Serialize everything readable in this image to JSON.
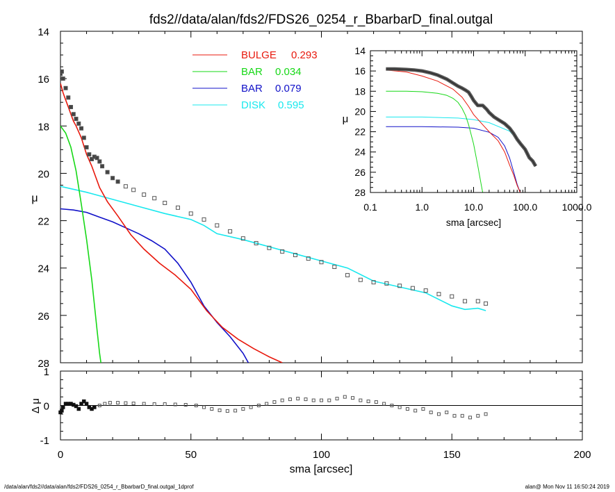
{
  "title": "fds2//data/alan/fds2/FDS26_0254_r_BbarbarD_final.outgal",
  "footer_left": "/data/alan/fds2//data/alan/fds2/FDS26_0254_r_BbarbarD_final.outgal_1dprof",
  "footer_right": "alan@  Mon Nov 11 16:50:24 2019",
  "colors": {
    "bulge": "#e8180c",
    "bar1": "#16d816",
    "bar2": "#1010c8",
    "disk": "#18e8ee",
    "data": "#555555"
  },
  "chart_data": [
    {
      "id": "main",
      "type": "line",
      "xlabel": "",
      "ylabel": "μ",
      "xlim": [
        0,
        200
      ],
      "ylim": [
        28,
        14
      ],
      "yticks": [
        14,
        16,
        18,
        20,
        22,
        24,
        26,
        28
      ],
      "legend": {
        "placement": "top-center"
      },
      "series": [
        {
          "key": "bulge",
          "name": "BULGE",
          "value": "0.293",
          "x": [
            0,
            1,
            2,
            3,
            4,
            5,
            6,
            8,
            10,
            12,
            15,
            18,
            22,
            27,
            32,
            38,
            44,
            50,
            56,
            62,
            68,
            74,
            80,
            85
          ],
          "y": [
            16.2,
            16.6,
            16.9,
            17.2,
            17.5,
            17.8,
            18.0,
            18.5,
            19.2,
            19.7,
            20.6,
            21.2,
            21.8,
            22.6,
            23.2,
            23.8,
            24.3,
            24.9,
            25.8,
            26.5,
            27.0,
            27.4,
            27.75,
            28.0
          ]
        },
        {
          "key": "bar1",
          "name": "BAR",
          "value": "0.034",
          "x": [
            0,
            2,
            4,
            6,
            8,
            10,
            12,
            14,
            15,
            15.5
          ],
          "y": [
            18.0,
            18.3,
            18.9,
            19.9,
            21.3,
            22.8,
            24.5,
            26.6,
            27.6,
            28.0
          ]
        },
        {
          "key": "bar2",
          "name": "BAR",
          "value": "0.079",
          "x": [
            0,
            5,
            10,
            15,
            20,
            25,
            30,
            35,
            40,
            45,
            50,
            55,
            60,
            65,
            70,
            72
          ],
          "y": [
            21.5,
            21.55,
            21.65,
            21.85,
            22.05,
            22.3,
            22.55,
            22.85,
            23.2,
            23.8,
            24.6,
            25.6,
            26.3,
            26.9,
            27.6,
            28.0
          ]
        },
        {
          "key": "disk",
          "name": "DISK",
          "value": "0.595",
          "x": [
            0,
            10,
            20,
            30,
            40,
            50,
            55,
            60,
            70,
            80,
            90,
            100,
            110,
            120,
            130,
            140,
            150,
            155,
            160,
            163
          ],
          "y": [
            20.55,
            20.8,
            21.1,
            21.4,
            21.7,
            21.95,
            22.2,
            22.55,
            22.8,
            23.1,
            23.4,
            23.7,
            24.0,
            24.55,
            24.8,
            25.05,
            25.6,
            25.75,
            25.7,
            25.8
          ]
        },
        {
          "key": "data",
          "name": "",
          "x": [
            0,
            0.5,
            1,
            2,
            3,
            4,
            5,
            6,
            7,
            8,
            9,
            10,
            11,
            12,
            13,
            14,
            15,
            16,
            18,
            20,
            22,
            25,
            28,
            32,
            36,
            40,
            45,
            50,
            55,
            60,
            65,
            70,
            75,
            80,
            85,
            90,
            95,
            100,
            105,
            110,
            115,
            120,
            125,
            130,
            135,
            140,
            145,
            150,
            155,
            160,
            163
          ],
          "y": [
            15.8,
            15.7,
            16.0,
            16.4,
            16.8,
            17.2,
            17.5,
            17.7,
            17.9,
            18.1,
            18.5,
            18.9,
            19.2,
            19.4,
            19.3,
            19.35,
            19.5,
            19.7,
            19.95,
            20.2,
            20.35,
            20.55,
            20.7,
            20.9,
            21.05,
            21.25,
            21.45,
            21.7,
            21.95,
            22.2,
            22.45,
            22.75,
            22.95,
            23.15,
            23.3,
            23.45,
            23.6,
            23.75,
            23.95,
            24.3,
            24.5,
            24.6,
            24.65,
            24.75,
            24.85,
            24.95,
            25.1,
            25.2,
            25.4,
            25.4,
            25.5
          ]
        }
      ]
    },
    {
      "id": "residual",
      "type": "scatter",
      "xlabel": "sma [arcsec]",
      "ylabel": "Δ μ",
      "xlim": [
        0,
        200
      ],
      "ylim": [
        -1,
        1
      ],
      "xticks": [
        0,
        50,
        100,
        150,
        200
      ],
      "yticks": [
        -1,
        0,
        1
      ],
      "series": [
        {
          "key": "data",
          "name": "",
          "x": [
            0,
            0.5,
            1,
            2,
            3,
            4,
            5,
            6,
            7,
            8,
            9,
            10,
            11,
            12,
            13,
            15,
            17,
            19,
            22,
            25,
            28,
            32,
            36,
            40,
            44,
            48,
            52,
            55,
            58,
            61,
            64,
            67,
            70,
            73,
            76,
            79,
            82,
            85,
            88,
            91,
            94,
            97,
            100,
            103,
            106,
            109,
            112,
            115,
            118,
            121,
            124,
            127,
            130,
            133,
            136,
            139,
            142,
            145,
            148,
            151,
            154,
            157,
            160,
            163
          ],
          "y": [
            -0.2,
            -0.15,
            -0.05,
            0.05,
            0.05,
            0.05,
            0.02,
            -0.02,
            -0.1,
            0.05,
            0.12,
            0.05,
            -0.05,
            -0.1,
            -0.05,
            0.0,
            0.05,
            0.08,
            0.08,
            0.07,
            0.06,
            0.05,
            0.04,
            0.04,
            0.03,
            0.02,
            0.0,
            -0.05,
            -0.1,
            -0.14,
            -0.16,
            -0.15,
            -0.1,
            -0.05,
            0.0,
            0.05,
            0.1,
            0.15,
            0.18,
            0.2,
            0.18,
            0.15,
            0.15,
            0.15,
            0.2,
            0.25,
            0.22,
            0.15,
            0.12,
            0.1,
            0.05,
            0.0,
            -0.05,
            -0.1,
            -0.15,
            -0.1,
            -0.2,
            -0.25,
            -0.2,
            -0.3,
            -0.3,
            -0.35,
            -0.3,
            -0.25
          ]
        }
      ]
    },
    {
      "id": "inset",
      "type": "line",
      "xlabel": "sma [arcsec]",
      "ylabel": "μ",
      "xscale": "log",
      "xlim": [
        0.1,
        1000
      ],
      "ylim": [
        28,
        14
      ],
      "xticks": [
        0.1,
        1,
        10,
        100,
        1000
      ],
      "xtick_labels": [
        "0.1",
        "1.0",
        "10.0",
        "100.0",
        "1000.0"
      ],
      "yticks": [
        14,
        16,
        18,
        20,
        22,
        24,
        26,
        28
      ],
      "series": [
        {
          "key": "bulge",
          "name": "",
          "x": [
            0.2,
            0.5,
            1,
            2,
            4,
            6,
            8,
            10,
            15,
            20,
            30,
            40,
            50,
            60,
            70,
            80
          ],
          "y": [
            15.9,
            16.1,
            16.5,
            17.0,
            17.8,
            18.6,
            19.5,
            20.3,
            21.3,
            22.0,
            22.9,
            24.0,
            25.3,
            26.3,
            27.3,
            28.0
          ]
        },
        {
          "key": "bar1",
          "name": "",
          "x": [
            0.2,
            0.5,
            1,
            2,
            3,
            4,
            5,
            6,
            7,
            8,
            10,
            12,
            14,
            15
          ],
          "y": [
            18.0,
            18.0,
            18.05,
            18.2,
            18.4,
            18.7,
            19.1,
            19.7,
            20.4,
            21.3,
            23.2,
            25.3,
            27.2,
            28.0
          ]
        },
        {
          "key": "bar2",
          "name": "",
          "x": [
            0.2,
            1,
            5,
            10,
            20,
            30,
            40,
            50,
            60,
            70,
            80
          ],
          "y": [
            21.5,
            21.5,
            21.55,
            21.65,
            22.05,
            22.55,
            23.4,
            24.6,
            26.0,
            27.2,
            28.0
          ]
        },
        {
          "key": "disk",
          "name": "",
          "x": [
            0.2,
            1,
            5,
            10,
            20,
            50,
            100,
            150
          ],
          "y": [
            20.55,
            20.55,
            20.65,
            20.8,
            21.1,
            21.95,
            23.7,
            25.3
          ]
        },
        {
          "key": "data",
          "name": "",
          "x": [
            0.2,
            0.3,
            0.5,
            0.7,
            1,
            1.5,
            2,
            3,
            4,
            5,
            6,
            7,
            8,
            9,
            10,
            12,
            15,
            18,
            20,
            25,
            30,
            40,
            50,
            60,
            70,
            80,
            100,
            120,
            140,
            160
          ],
          "y": [
            15.8,
            15.8,
            15.85,
            15.9,
            16.0,
            16.2,
            16.4,
            16.8,
            17.2,
            17.5,
            17.7,
            17.9,
            18.1,
            18.5,
            18.9,
            19.4,
            19.4,
            19.8,
            20.1,
            20.55,
            20.8,
            21.2,
            21.65,
            22.2,
            22.75,
            23.15,
            23.75,
            24.55,
            24.9,
            25.4
          ]
        }
      ]
    }
  ]
}
